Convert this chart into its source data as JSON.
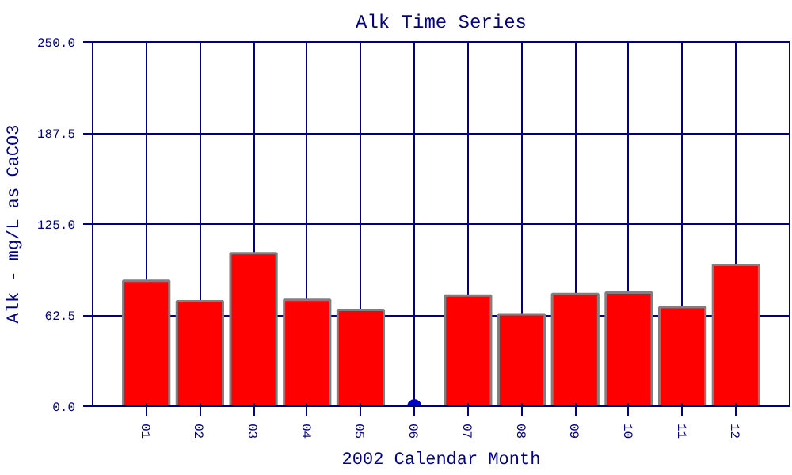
{
  "chart_data": {
    "type": "bar",
    "title": "Alk Time Series",
    "xlabel": "2002 Calendar Month",
    "ylabel": "Alk - mg/L as CaCO3",
    "categories": [
      "01",
      "02",
      "03",
      "04",
      "05",
      "06",
      "07",
      "08",
      "09",
      "10",
      "11",
      "12"
    ],
    "series": [
      {
        "color": "#ff0000",
        "values": [
          86,
          72,
          105,
          73,
          66,
          null,
          76,
          63,
          77,
          78,
          68,
          97
        ]
      },
      {
        "type": "scatter",
        "color": "#0000cc",
        "x": [
          "06"
        ],
        "values": [
          0
        ],
        "marker": "circle"
      }
    ],
    "ylim": [
      0,
      250
    ],
    "yticks": [
      {
        "value": 0,
        "label": "0.0"
      },
      62.5,
      {
        "value": 125,
        "label": "125.0"
      },
      187.5,
      {
        "value": 250,
        "label": "250.0"
      }
    ],
    "grid": true
  }
}
